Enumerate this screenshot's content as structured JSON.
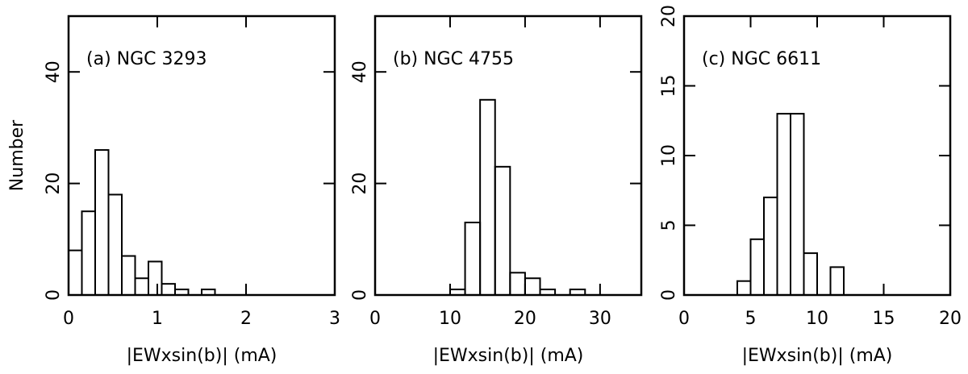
{
  "chart_data": [
    {
      "type": "histogram",
      "title": "(a) NGC 3293",
      "x_label": "|EWxsin(b)|  (mA)",
      "y_label": "Number",
      "bins": [
        0,
        0.15,
        0.3,
        0.45,
        0.6,
        0.75,
        0.9,
        1.05,
        1.2,
        1.35,
        1.5,
        1.65
      ],
      "counts": [
        8,
        15,
        26,
        18,
        7,
        3,
        6,
        2,
        1,
        0,
        1
      ],
      "xlim": [
        0,
        3
      ],
      "ylim": [
        0,
        50
      ],
      "xticks": [
        0,
        1,
        2,
        3
      ],
      "yticks": [
        0,
        20,
        40
      ]
    },
    {
      "type": "histogram",
      "title": "(b) NGC 4755",
      "x_label": "|EWxsin(b)|  (mA)",
      "bins": [
        10,
        12,
        14,
        16,
        18,
        20,
        22,
        24,
        26,
        28
      ],
      "counts": [
        1,
        13,
        35,
        23,
        4,
        3,
        1,
        0,
        1
      ],
      "xlim": [
        0,
        35.5
      ],
      "ylim": [
        0,
        50
      ],
      "xticks": [
        0,
        10,
        20,
        30
      ],
      "yticks": [
        0,
        20,
        40
      ]
    },
    {
      "type": "histogram",
      "title": "(c) NGC 6611",
      "x_label": "|EWxsin(b)|  (mA)",
      "bins": [
        4,
        5,
        6,
        7,
        8,
        9,
        10,
        11,
        12
      ],
      "counts": [
        1,
        4,
        7,
        13,
        13,
        3,
        0,
        2
      ],
      "xlim": [
        0,
        20
      ],
      "ylim": [
        0,
        20
      ],
      "xticks": [
        0,
        5,
        10,
        15,
        20
      ],
      "yticks": [
        0,
        5,
        10,
        15,
        20
      ]
    }
  ]
}
